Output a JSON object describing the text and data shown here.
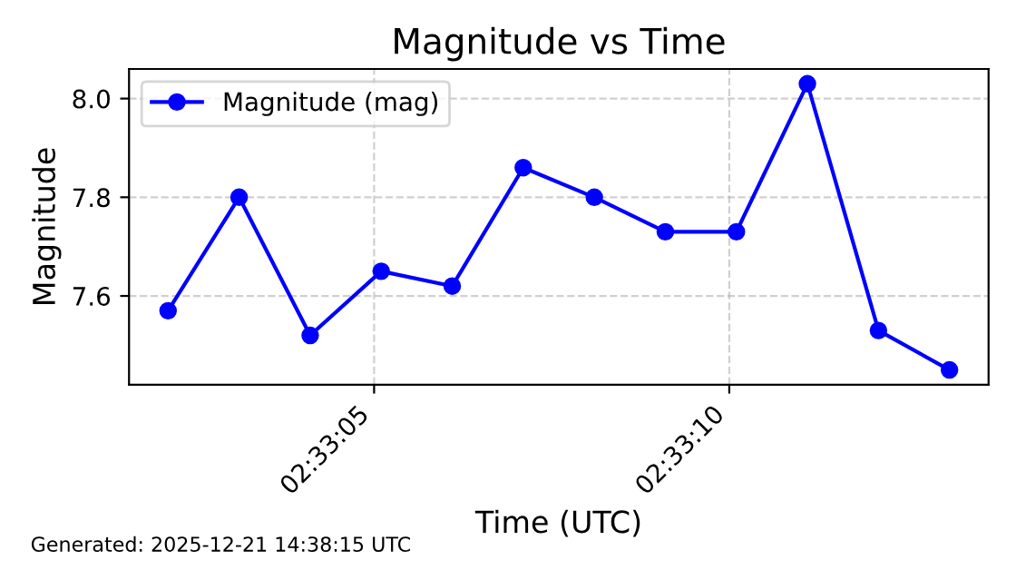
{
  "chart_data": {
    "type": "line",
    "title": "Magnitude vs Time",
    "xlabel": "Time (UTC)",
    "ylabel": "Magnitude",
    "x": [
      2.5505833,
      2.5508611,
      2.5511389,
      2.5514167,
      2.5516944,
      2.5519722,
      2.55225,
      2.5525278,
      2.5528056,
      2.5530833,
      2.5533611,
      2.5536389
    ],
    "series": [
      {
        "name": "Magnitude (mag)",
        "color": "#0000ff",
        "values": [
          7.57,
          7.8,
          7.52,
          7.65,
          7.62,
          7.86,
          7.8,
          7.73,
          7.73,
          8.03,
          7.53,
          7.45
        ]
      }
    ],
    "xlim": [
      2.5504306,
      2.5537917
    ],
    "xticks": [
      {
        "value": 2.5513889,
        "label": "02:33:05"
      },
      {
        "value": 2.5527778,
        "label": "02:33:10"
      }
    ],
    "ylim": [
      7.42,
      8.06
    ],
    "yticks": [
      {
        "value": 7.6,
        "label": "7.6"
      },
      {
        "value": 7.8,
        "label": "7.8"
      },
      {
        "value": 8.0,
        "label": "8.0"
      }
    ],
    "grid": true,
    "legend": "top left",
    "marker": "circle",
    "line_style": "solid",
    "annotations": [
      "Generated: 2025-12-21 14:38:15 UTC"
    ]
  }
}
